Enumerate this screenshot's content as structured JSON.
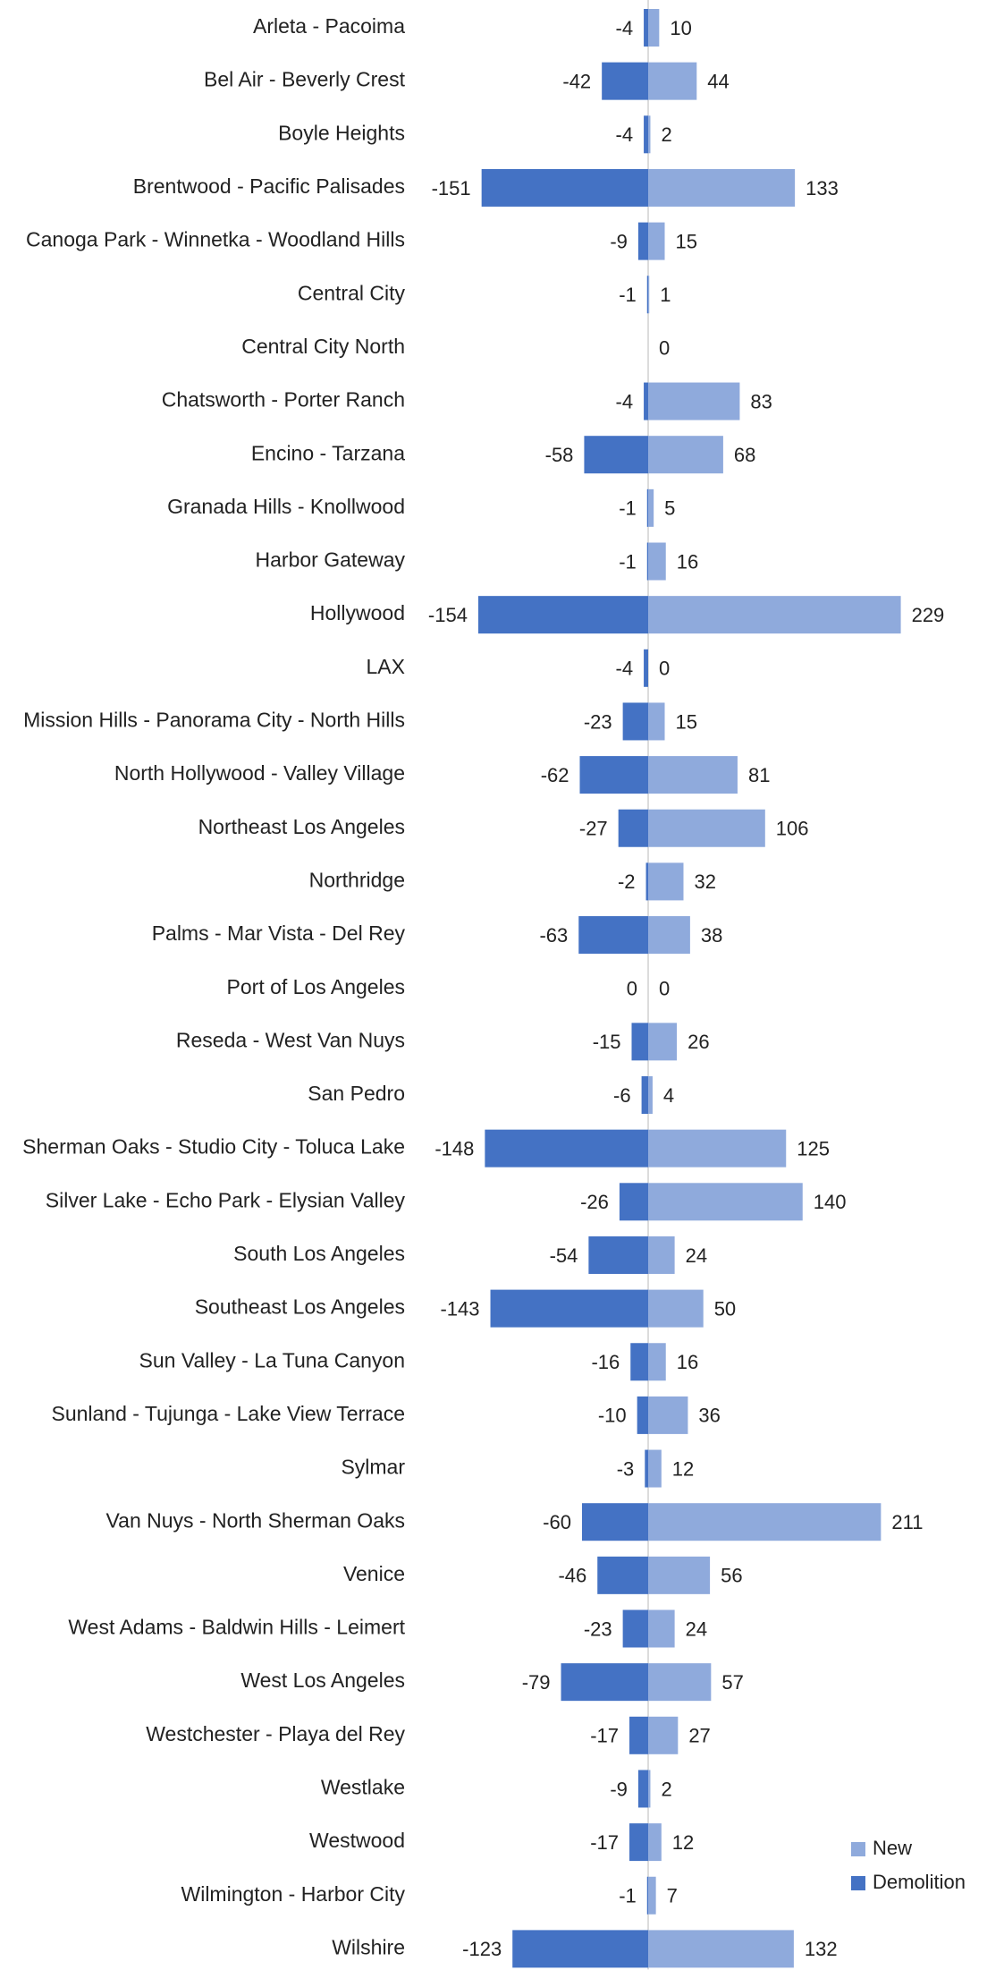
{
  "chart_data": {
    "type": "bar",
    "orientation": "horizontal",
    "stacked": "diverging",
    "categories": [
      "Arleta - Pacoima",
      "Bel Air - Beverly Crest",
      "Boyle Heights",
      "Brentwood - Pacific Palisades",
      "Canoga Park - Winnetka - Woodland Hills",
      "Central City",
      "Central City North",
      "Chatsworth - Porter Ranch",
      "Encino - Tarzana",
      "Granada Hills - Knollwood",
      "Harbor Gateway",
      "Hollywood",
      "LAX",
      "Mission Hills - Panorama City - North Hills",
      "North Hollywood - Valley Village",
      "Northeast Los Angeles",
      "Northridge",
      "Palms - Mar Vista - Del Rey",
      "Port of Los Angeles",
      "Reseda - West Van Nuys",
      "San Pedro",
      "Sherman Oaks - Studio City - Toluca Lake",
      "Silver Lake - Echo Park - Elysian Valley",
      "South Los Angeles",
      "Southeast Los Angeles",
      "Sun Valley - La Tuna Canyon",
      "Sunland - Tujunga - Lake View Terrace",
      "Sylmar",
      "Van Nuys - North Sherman Oaks",
      "Venice",
      "West Adams - Baldwin Hills - Leimert",
      "West Los Angeles",
      "Westchester - Playa del Rey",
      "Westlake",
      "Westwood",
      "Wilmington - Harbor City",
      "Wilshire"
    ],
    "series": [
      {
        "name": "New",
        "color": "#8faadc",
        "values": [
          10,
          44,
          2,
          133,
          15,
          1,
          0,
          83,
          68,
          5,
          16,
          229,
          0,
          15,
          81,
          106,
          32,
          38,
          0,
          26,
          4,
          125,
          140,
          24,
          50,
          16,
          36,
          12,
          211,
          56,
          24,
          57,
          27,
          2,
          12,
          7,
          132
        ]
      },
      {
        "name": "Demolition",
        "color": "#4472c4",
        "values": [
          -4,
          -42,
          -4,
          -151,
          -9,
          -1,
          null,
          -4,
          -58,
          -1,
          -1,
          -154,
          -4,
          -23,
          -62,
          -27,
          -2,
          -63,
          0,
          -15,
          -6,
          -148,
          -26,
          -54,
          -143,
          -16,
          -10,
          -3,
          -60,
          -46,
          -23,
          -79,
          -17,
          -9,
          -17,
          -1,
          -123
        ]
      }
    ],
    "legend": "bottom-right"
  }
}
